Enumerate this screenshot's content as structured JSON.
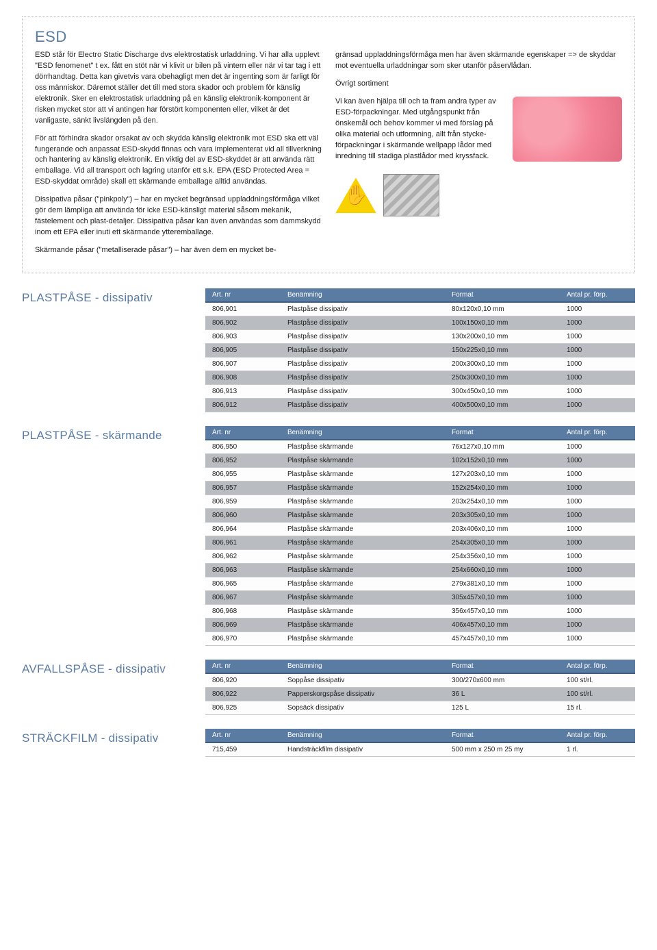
{
  "article": {
    "title": "ESD",
    "left_paras": [
      "ESD står för Electro Static Discharge dvs elektrostatisk urladdning. Vi har alla upplevt \"ESD fenomenet\" t ex. fått en stöt när vi klivit ur bilen på vintern eller när vi tar tag i ett dörrhandtag. Detta kan givetvis vara obehagligt men det är ingenting som är farligt för oss människor. Däremot ställer det till med stora skador och problem för känslig elektronik. Sker en elektrostatisk urladdning på en känslig elektronik-komponent är risken mycket stor att vi antingen har förstört komponenten eller, vilket är det vanligaste, sänkt livslängden på den.",
      "För att förhindra skador orsakat av och skydda känslig elektronik mot ESD ska ett väl fungerande och anpassat ESD-skydd finnas och vara implementerat vid all tillverkning och hantering av känslig elektronik. En viktig del av ESD-skyddet är att använda rätt emballage. Vid all transport och lagring utanför ett s.k. EPA (ESD Protected Area = ESD-skyddat område) skall ett skärmande emballage alltid användas.",
      "Dissipativa påsar (\"pinkpoly\") – har en mycket begränsad uppladdningsförmåga vilket gör dem lämpliga att använda för icke ESD-känsligt material såsom mekanik, fästelement och plast-detaljer. Dissipativa påsar kan även användas som dammskydd inom ett EPA eller inuti ett skärmande ytteremballage.",
      "Skärmande påsar (\"metalliserade påsar\") – har även dem en mycket be-"
    ],
    "right_paras": [
      "gränsad uppladdningsförmåga men har även skärmande egenskaper => de skyddar mot eventuella urladdningar som sker utanför påsen/lådan.",
      "Övrigt sortiment",
      "Vi kan även hjälpa till och ta fram andra typer av ESD-förpackningar. Med utgångspunkt från önskemål och behov kommer vi med förslag på olika material och utformning, allt från stycke-förpackningar i skärmande wellpapp lådor med inredning till stadiga plastlådor med kryssfack."
    ]
  },
  "table_headers": {
    "c1": "Art. nr",
    "c2": "Benämning",
    "c3": "Format",
    "c4": "Antal pr. förp."
  },
  "sections": [
    {
      "title": "PLASTPÅSE - dissipativ",
      "rows": [
        [
          "806,901",
          "Plastpåse dissipativ",
          "80x120x0,10 mm",
          "1000"
        ],
        [
          "806,902",
          "Plastpåse dissipativ",
          "100x150x0,10 mm",
          "1000"
        ],
        [
          "806,903",
          "Plastpåse dissipativ",
          "130x200x0,10 mm",
          "1000"
        ],
        [
          "806,905",
          "Plastpåse dissipativ",
          "150x225x0,10 mm",
          "1000"
        ],
        [
          "806,907",
          "Plastpåse dissipativ",
          "200x300x0,10 mm",
          "1000"
        ],
        [
          "806,908",
          "Plastpåse dissipativ",
          "250x300x0,10 mm",
          "1000"
        ],
        [
          "806,913",
          "Plastpåse dissipativ",
          "300x450x0,10 mm",
          "1000"
        ],
        [
          "806,912",
          "Plastpåse dissipativ",
          "400x500x0,10 mm",
          "1000"
        ]
      ]
    },
    {
      "title": "PLASTPÅSE - skärmande",
      "rows": [
        [
          "806,950",
          "Plastpåse skärmande",
          "76x127x0,10 mm",
          "1000"
        ],
        [
          "806,952",
          "Plastpåse skärmande",
          "102x152x0,10 mm",
          "1000"
        ],
        [
          "806,955",
          "Plastpåse skärmande",
          "127x203x0,10 mm",
          "1000"
        ],
        [
          "806,957",
          "Plastpåse skärmande",
          "152x254x0,10 mm",
          "1000"
        ],
        [
          "806,959",
          "Plastpåse skärmande",
          "203x254x0,10 mm",
          "1000"
        ],
        [
          "806,960",
          "Plastpåse skärmande",
          "203x305x0,10 mm",
          "1000"
        ],
        [
          "806,964",
          "Plastpåse skärmande",
          "203x406x0,10 mm",
          "1000"
        ],
        [
          "806,961",
          "Plastpåse skärmande",
          "254x305x0,10 mm",
          "1000"
        ],
        [
          "806,962",
          "Plastpåse skärmande",
          "254x356x0,10 mm",
          "1000"
        ],
        [
          "806,963",
          "Plastpåse skärmande",
          "254x660x0,10 mm",
          "1000"
        ],
        [
          "806,965",
          "Plastpåse skärmande",
          "279x381x0,10 mm",
          "1000"
        ],
        [
          "806,967",
          "Plastpåse skärmande",
          "305x457x0,10 mm",
          "1000"
        ],
        [
          "806,968",
          "Plastpåse skärmande",
          "356x457x0,10 mm",
          "1000"
        ],
        [
          "806,969",
          "Plastpåse skärmande",
          "406x457x0,10 mm",
          "1000"
        ],
        [
          "806,970",
          "Plastpåse skärmande",
          "457x457x0,10 mm",
          "1000"
        ]
      ]
    },
    {
      "title": "AVFALLSPÅSE - dissipativ",
      "rows": [
        [
          "806,920",
          "Soppåse dissipativ",
          "300/270x600 mm",
          "100 st/rl."
        ],
        [
          "806,922",
          "Papperskorgspåse dissipativ",
          "36 L",
          "100 st/rl."
        ],
        [
          "806,925",
          "Sopsäck dissipativ",
          "125 L",
          "15 rl."
        ]
      ]
    },
    {
      "title": "STRÄCKFILM - dissipativ",
      "rows": [
        [
          "715,459",
          "Handsträckfilm dissipativ",
          "500 mm x 250 m 25 my",
          "1 rl."
        ]
      ]
    }
  ]
}
